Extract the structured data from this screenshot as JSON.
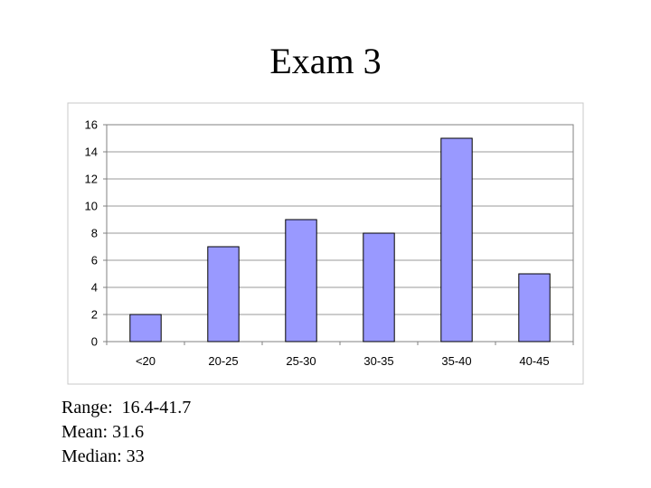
{
  "slide": {
    "title": "Exam 3"
  },
  "stats": {
    "range": "Range:  16.4-41.7",
    "mean": "Mean: 31.6",
    "median": "Median: 33"
  },
  "colors": {
    "bar_fill": "#9999ff",
    "bar_stroke": "#000000",
    "plot_border": "#808080",
    "grid": "#9a9a9a",
    "frame": "#c8c8c8"
  },
  "chart_data": {
    "type": "bar",
    "title": "",
    "xlabel": "",
    "ylabel": "",
    "categories": [
      "<20",
      "20-25",
      "25-30",
      "30-35",
      "35-40",
      "40-45"
    ],
    "values": [
      2,
      7,
      9,
      8,
      15,
      5
    ],
    "ylim": [
      0,
      16
    ],
    "yticks": [
      0,
      2,
      4,
      6,
      8,
      10,
      12,
      14,
      16
    ],
    "grid": true,
    "legend": "none"
  }
}
